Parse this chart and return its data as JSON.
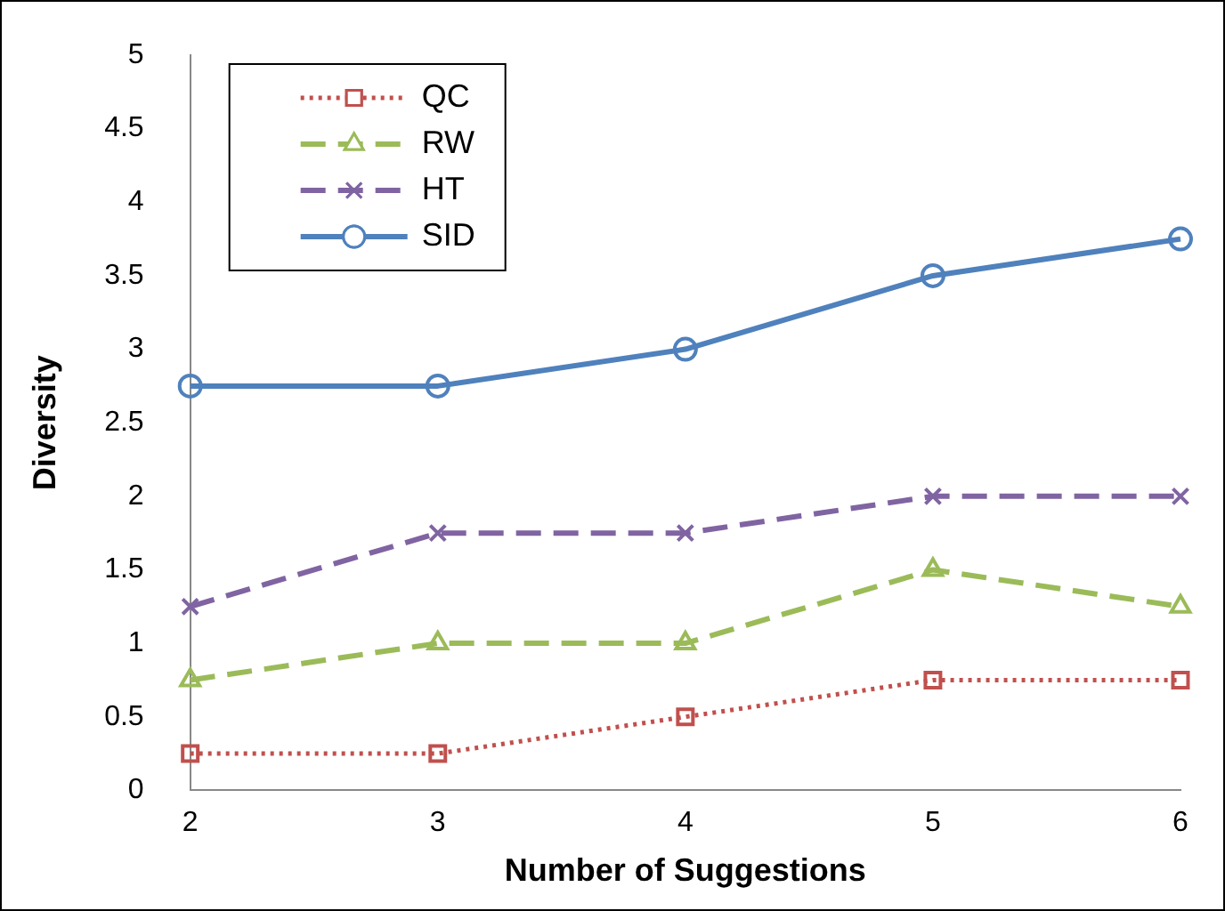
{
  "chart_data": {
    "type": "line",
    "xlabel": "Number of Suggestions",
    "ylabel": "Diversity",
    "x": [
      2,
      3,
      4,
      5,
      6
    ],
    "xlim": [
      2,
      6
    ],
    "xticks": [
      2,
      3,
      4,
      5,
      6
    ],
    "ylim": [
      0,
      5
    ],
    "yticks": [
      0,
      0.5,
      1,
      1.5,
      2,
      2.5,
      3,
      3.5,
      4,
      4.5,
      5
    ],
    "grid": false,
    "legend": "top left",
    "series": [
      {
        "name": "QC",
        "color": "#c0504d",
        "values": [
          0.25,
          0.25,
          0.5,
          0.75,
          0.75
        ],
        "marker": "square",
        "line_style": "dotted"
      },
      {
        "name": "RW",
        "color": "#9bbb59",
        "values": [
          0.75,
          1,
          1,
          1.5,
          1.25
        ],
        "marker": "triangle",
        "line_style": "dashed"
      },
      {
        "name": "HT",
        "color": "#8064a2",
        "values": [
          1.25,
          1.75,
          1.75,
          2,
          2
        ],
        "marker": "cross",
        "line_style": "dashed"
      },
      {
        "name": "SID",
        "color": "#4f81bd",
        "values": [
          2.75,
          2.75,
          3,
          3.5,
          3.75
        ],
        "marker": "circle",
        "line_style": "solid"
      }
    ]
  }
}
